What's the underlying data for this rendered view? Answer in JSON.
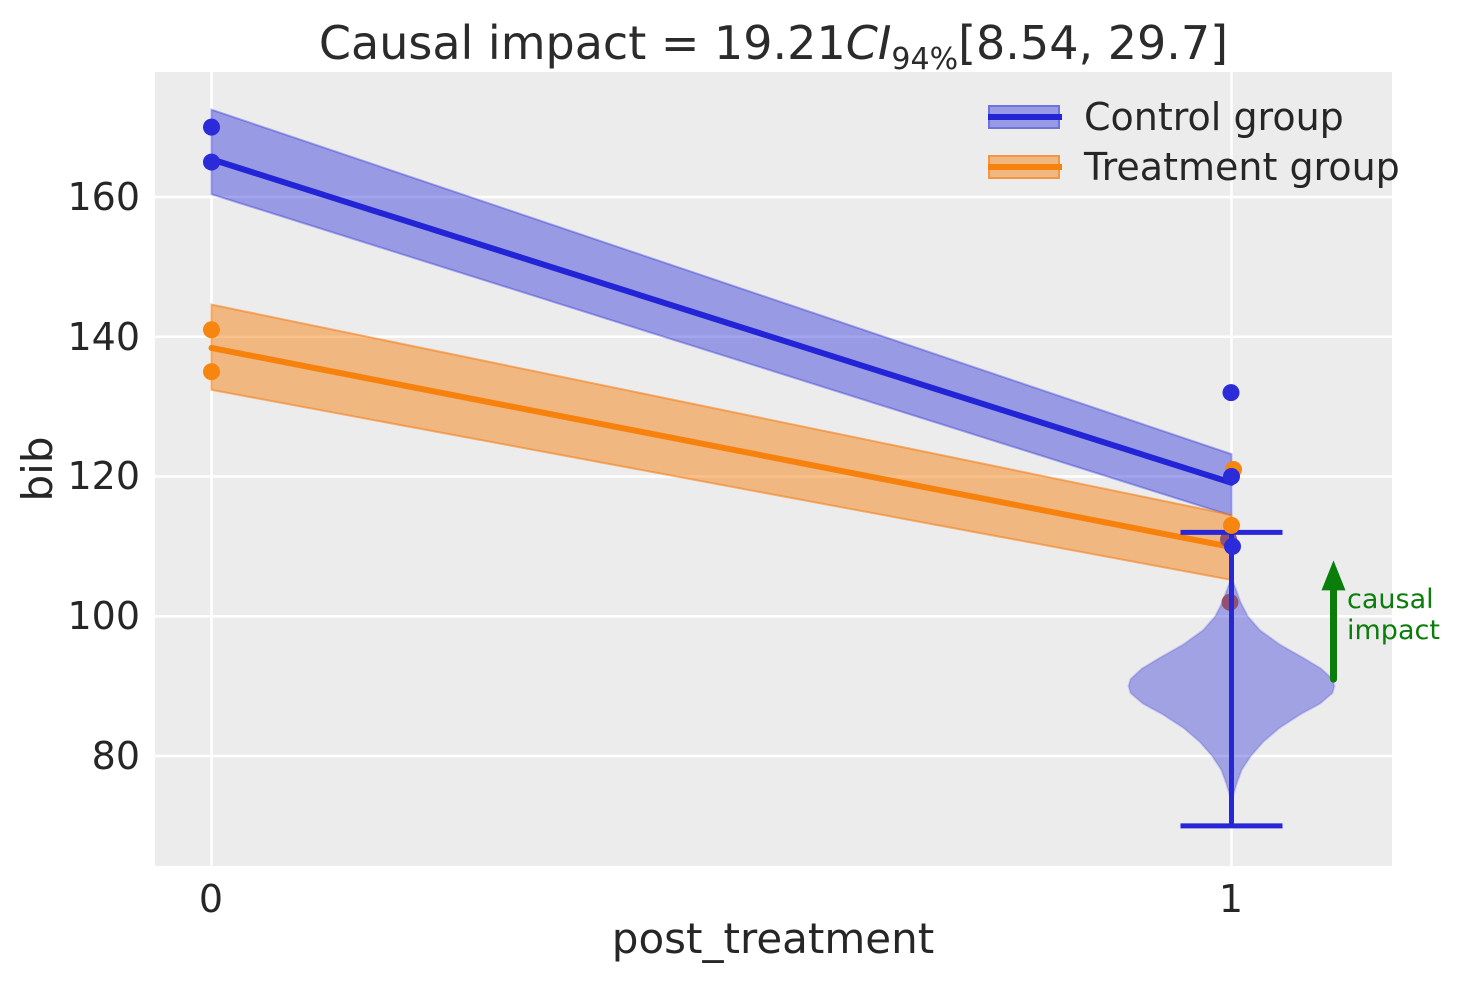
{
  "title": {
    "prefix": "Causal impact = 19.21",
    "ci_label": "CI",
    "ci_sub": "94%",
    "interval": "[8.54, 29.7]"
  },
  "axes": {
    "xlabel": "post_treatment",
    "ylabel": "bib",
    "xticks": [
      "0",
      "1"
    ],
    "yticks": [
      "160",
      "140",
      "120",
      "100",
      "80"
    ]
  },
  "legend": {
    "items": [
      {
        "label": "Control group"
      },
      {
        "label": "Treatment group"
      }
    ]
  },
  "annotation": {
    "line1": "causal",
    "line2": "impact"
  },
  "colors": {
    "figure_bg": "#ffffff",
    "axes_bg": "#ececec",
    "gridline": "#ffffff",
    "text": "#262626",
    "control_line": "#2224d6",
    "control_dot": "#2b2bd9",
    "control_band_fill": "rgba(50,55,218,0.45)",
    "control_band_edge": "rgba(50,55,218,0.40)",
    "treatment_line": "#f6820d",
    "treatment_dot": "#f6860f",
    "treatment_band_fill": "rgba(246,140,40,0.55)",
    "treatment_band_edge": "rgba(244,122,15,0.55)",
    "violin_fill": "rgba(55,60,215,0.42)",
    "violin_edge": "rgba(55,60,215,0.20)",
    "whisker": "#2727d8",
    "overlap_dot": "#8f5273",
    "green": "#0b7d0b"
  },
  "chart_data": {
    "type": "line",
    "title": "Causal impact = 19.21 CI_94% [8.54, 29.7]",
    "xlabel": "post_treatment",
    "ylabel": "bib",
    "xtick_values": [
      0,
      1
    ],
    "ytick_values": [
      160,
      140,
      120,
      100,
      80
    ],
    "ylim": [
      64.3,
      177.9
    ],
    "xlim": [
      -0.055,
      1.16
    ],
    "grid": true,
    "legend_position": "upper right",
    "series": [
      {
        "name": "Control group",
        "line_y": [
          165.4,
          119.1
        ],
        "band_high": [
          172.5,
          123.2
        ],
        "band_low": [
          160.4,
          114.4
        ],
        "points": [
          {
            "x": 0,
            "v": 170,
            "dx": 0
          },
          {
            "x": 0,
            "v": 165,
            "dx": 0
          },
          {
            "x": 1,
            "v": 132,
            "dx": -0.5
          },
          {
            "x": 1,
            "v": 120,
            "dx": 0
          },
          {
            "x": 1,
            "v": 110,
            "dx": 1
          }
        ]
      },
      {
        "name": "Treatment group",
        "line_y": [
          138.4,
          109.9
        ],
        "band_high": [
          144.6,
          114.5
        ],
        "band_low": [
          132.4,
          105.2
        ],
        "points": [
          {
            "x": 0,
            "v": 141,
            "dx": 0
          },
          {
            "x": 0,
            "v": 135,
            "dx": 0
          },
          {
            "x": 1,
            "v": 121,
            "dx": 2
          },
          {
            "x": 1,
            "v": 113,
            "dx": 0
          }
        ]
      }
    ],
    "overlap_points": [
      {
        "x": 1,
        "v": 111,
        "dx": -3
      },
      {
        "x": 1,
        "v": 102,
        "dx": -1.5
      }
    ],
    "counterfactual_violin": {
      "x": 1,
      "whisker_low": 70,
      "whisker_high": 112,
      "peak_value": 90,
      "profile": [
        [
          105.5,
          0.0
        ],
        [
          104,
          0.004
        ],
        [
          102,
          0.009
        ],
        [
          100,
          0.016
        ],
        [
          98,
          0.028
        ],
        [
          96,
          0.047
        ],
        [
          94,
          0.071
        ],
        [
          92.5,
          0.088
        ],
        [
          91,
          0.099
        ],
        [
          90,
          0.101
        ],
        [
          89,
          0.099
        ],
        [
          87.5,
          0.087
        ],
        [
          86,
          0.068
        ],
        [
          84,
          0.047
        ],
        [
          82,
          0.031
        ],
        [
          80,
          0.019
        ],
        [
          78,
          0.01
        ],
        [
          76,
          0.005
        ],
        [
          74.5,
          0.002
        ],
        [
          73,
          0.0
        ]
      ]
    },
    "causal_impact_arrow": {
      "x": 1.1,
      "from_value": 91,
      "to_value": 108
    }
  }
}
